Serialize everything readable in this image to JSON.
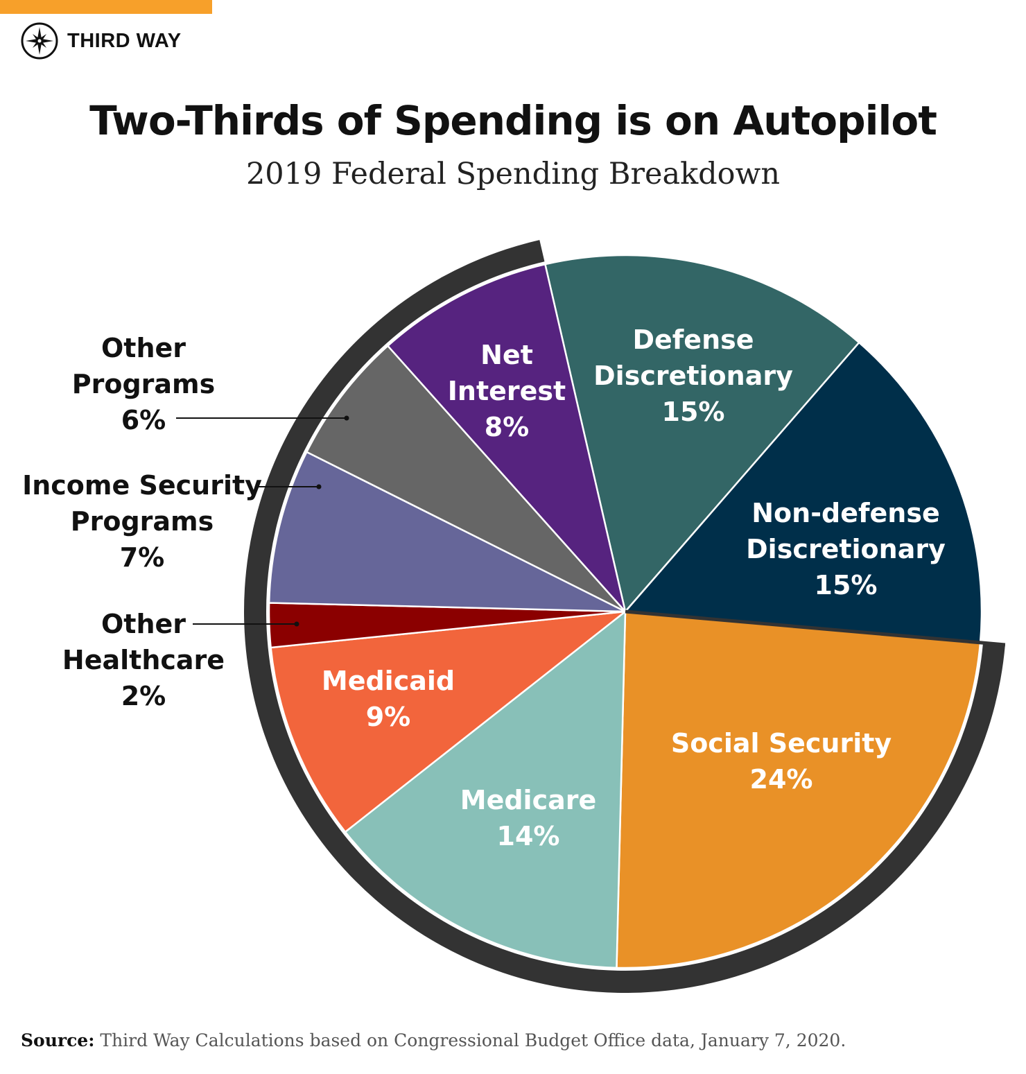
{
  "brand": {
    "name": "THIRD WAY",
    "accent_color": "#f7a02a",
    "logo_icon": "compass-star-icon"
  },
  "source": {
    "label": "Source:",
    "text": "Third Way Calculations based on Congressional Budget Office data, January 7, 2020."
  },
  "chart_data": {
    "type": "pie",
    "title": "Two-Thirds of Spending is on Autopilot",
    "subtitle": "2019 Federal Spending Breakdown",
    "start_angle_deg": -13,
    "direction": "clockwise",
    "slices": [
      {
        "label": "Defense\nDiscretionary",
        "value": 15,
        "color": "#336666",
        "autopilot": false
      },
      {
        "label": "Non-defense\nDiscretionary",
        "value": 15,
        "color": "#002f4a",
        "autopilot": false
      },
      {
        "label": "Social Security",
        "value": 24,
        "color": "#e99127",
        "autopilot": true
      },
      {
        "label": "Medicare",
        "value": 14,
        "color": "#88c0b8",
        "autopilot": true
      },
      {
        "label": "Medicaid",
        "value": 9,
        "color": "#f2653c",
        "autopilot": true
      },
      {
        "label": "Other\nHealthcare",
        "value": 2,
        "color": "#8b0000",
        "autopilot": true
      },
      {
        "label": "Income Security\nPrograms",
        "value": 7,
        "color": "#666699",
        "autopilot": true
      },
      {
        "label": "Other\nPrograms",
        "value": 6,
        "color": "#666666",
        "autopilot": true
      },
      {
        "label": "Net\nInterest",
        "value": 8,
        "color": "#56237f",
        "autopilot": true
      }
    ],
    "autopilot_ring_color": "#333333"
  }
}
